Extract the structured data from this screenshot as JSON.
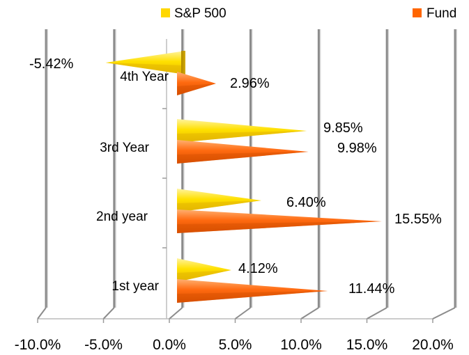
{
  "chart_data": {
    "type": "bar",
    "orientation": "horizontal",
    "style": "3d-cone",
    "categories": [
      "1st year",
      "2nd year",
      "3rd Year",
      "4th Year"
    ],
    "series": [
      {
        "name": "S&P 500",
        "color": "#FFD700",
        "values": [
          4.12,
          6.4,
          9.85,
          -5.42
        ],
        "labels": [
          "4.12%",
          "6.40%",
          "9.85%",
          "-5.42%"
        ]
      },
      {
        "name": "Fund",
        "color": "#FF6600",
        "values": [
          11.44,
          15.55,
          9.98,
          2.96
        ],
        "labels": [
          "11.44%",
          "15.55%",
          "9.98%",
          "2.96%"
        ]
      }
    ],
    "xlim": [
      -10,
      20
    ],
    "xticks": [
      -10,
      -5,
      0,
      5,
      10,
      15,
      20
    ],
    "xtick_labels": [
      "-10.0%",
      "-5.0%",
      "0.0%",
      "5.0%",
      "10.0%",
      "15.0%",
      "20.0%"
    ],
    "grid": true,
    "legend_position": "top"
  }
}
